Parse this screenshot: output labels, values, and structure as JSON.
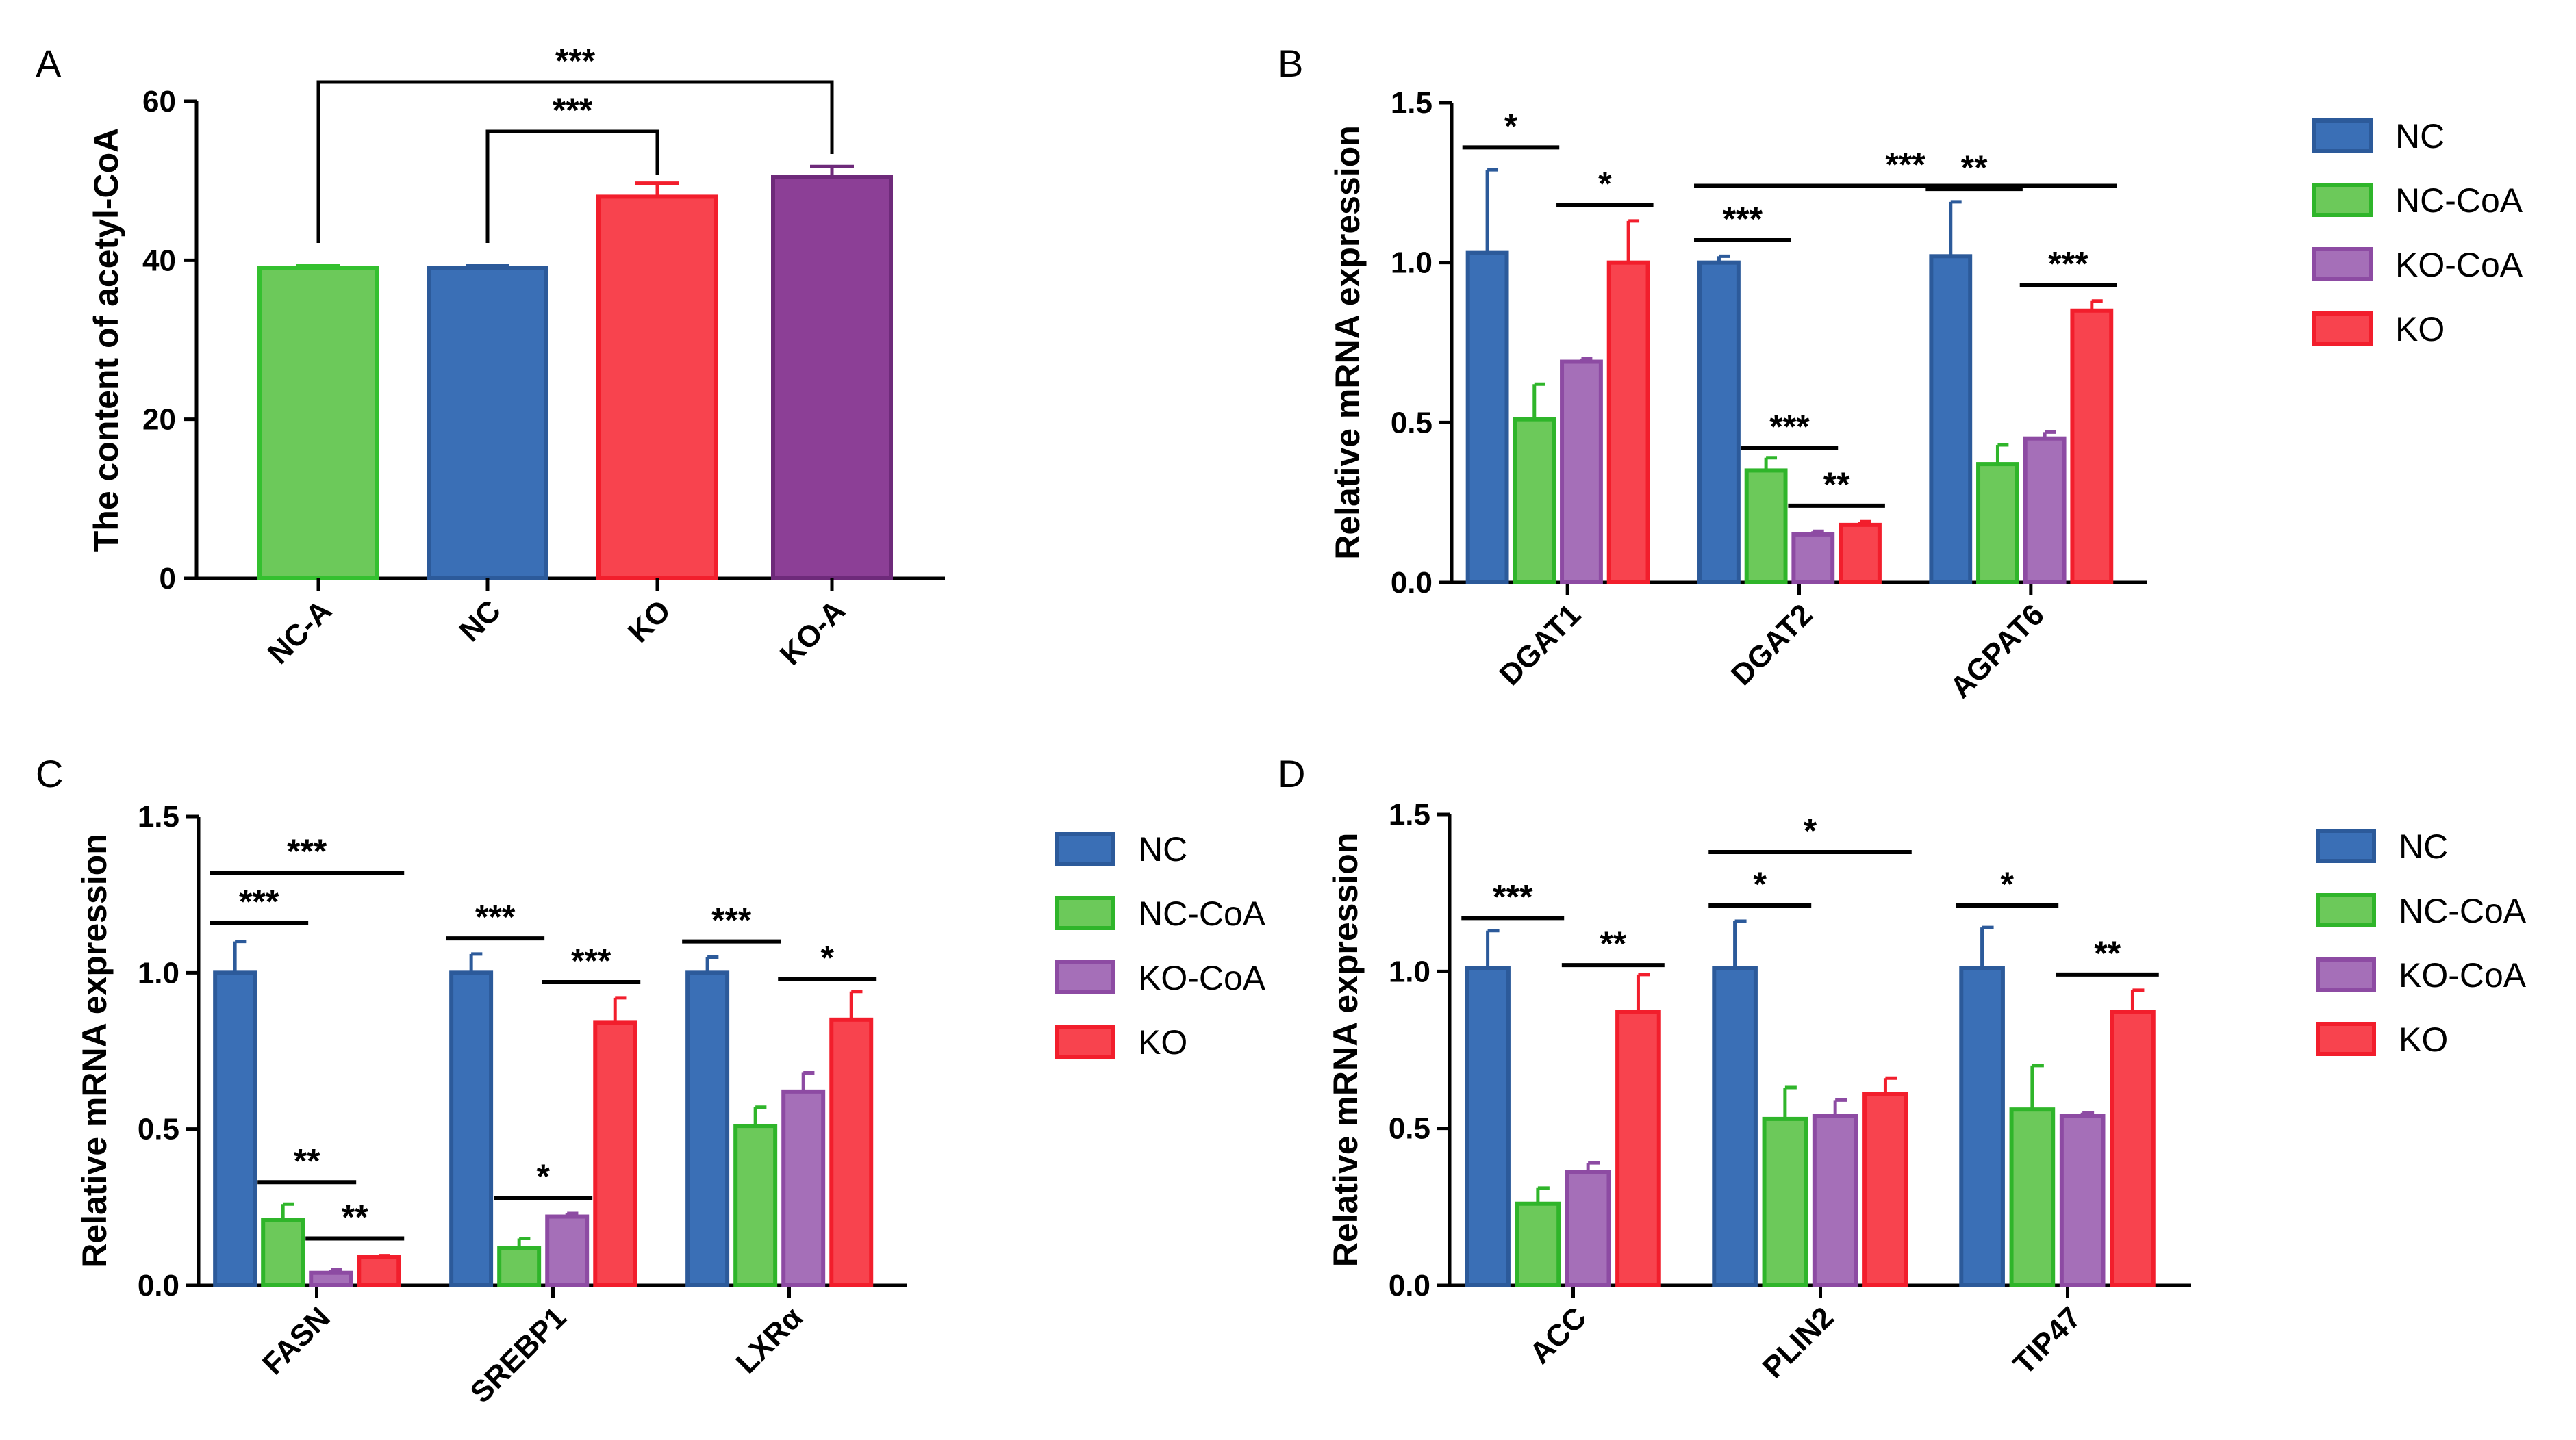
{
  "figure": {
    "series_colors": {
      "NC": "#3a6fb6",
      "NC-CoA": "#6cc95a",
      "KO-CoA": "#a56fb8",
      "KO": "#f8434e",
      "NC-A": "#6cc95a",
      "KO-A": "#8c3f96"
    },
    "series_strokes": {
      "NC": "#2c5a9a",
      "NC-CoA": "#2fb52a",
      "KO-CoA": "#8d4ba3",
      "KO": "#f21e2c",
      "NC-A": "#34c02f",
      "KO-A": "#6e2a7a"
    }
  },
  "chart_data": [
    {
      "panel": "A",
      "type": "bar",
      "title": "",
      "ylabel": "The content of acetyl-CoA",
      "xlabel": "",
      "ylim": [
        0,
        60
      ],
      "yticks": [
        0,
        20,
        40,
        60
      ],
      "categories": [
        "NC-A",
        "NC",
        "KO",
        "KO-A"
      ],
      "values": [
        39,
        39,
        48,
        50.5
      ],
      "errors": [
        0.3,
        0.3,
        1.7,
        1.3
      ],
      "significance": [
        {
          "groups": [
            "NC",
            "KO"
          ],
          "label": "***"
        },
        {
          "groups": [
            "NC-A",
            "KO-A"
          ],
          "label": "***"
        }
      ]
    },
    {
      "panel": "B",
      "type": "bar",
      "ylabel": "Relative mRNA expression",
      "ylim": [
        0,
        1.5
      ],
      "yticks": [
        "0.0",
        "0.5",
        "1.0",
        "1.5"
      ],
      "categories": [
        "DGAT1",
        "DGAT2",
        "AGPAT6"
      ],
      "series": [
        {
          "name": "NC",
          "values": [
            1.03,
            1.0,
            1.02
          ],
          "errors": [
            0.26,
            0.02,
            0.17
          ]
        },
        {
          "name": "NC-CoA",
          "values": [
            0.51,
            0.35,
            0.37
          ],
          "errors": [
            0.11,
            0.04,
            0.06
          ]
        },
        {
          "name": "KO-CoA",
          "values": [
            0.69,
            0.15,
            0.45
          ],
          "errors": [
            0.01,
            0.01,
            0.02
          ]
        },
        {
          "name": "KO",
          "values": [
            1.0,
            0.18,
            0.85
          ],
          "errors": [
            0.13,
            0.01,
            0.03
          ]
        }
      ],
      "legend": [
        "NC",
        "NC-CoA",
        "KO-CoA",
        "KO"
      ],
      "significance": [
        {
          "label": "*",
          "y": 1.36,
          "cat": 0,
          "from": 0,
          "to": 1
        },
        {
          "label": "*",
          "y": 1.18,
          "cat": 0,
          "from": 2,
          "to": 3
        },
        {
          "label": "***",
          "y": 1.24,
          "span": [
            1,
            0,
            2,
            3
          ]
        },
        {
          "label": "***",
          "y": 1.07,
          "cat": 1,
          "from": 0,
          "to": 1
        },
        {
          "label": "***",
          "y": 0.42,
          "cat": 1,
          "from": 1,
          "to": 2
        },
        {
          "label": "**",
          "y": 0.24,
          "cat": 1,
          "from": 2,
          "to": 3
        },
        {
          "label": "**",
          "y": 1.23,
          "cat": 2,
          "from": 0,
          "to": 1
        },
        {
          "label": "***",
          "y": 0.93,
          "cat": 2,
          "from": 2,
          "to": 3
        }
      ]
    },
    {
      "panel": "C",
      "type": "bar",
      "ylabel": "Relative mRNA expression",
      "ylim": [
        0,
        1.5
      ],
      "yticks": [
        "0.0",
        "0.5",
        "1.0",
        "1.5"
      ],
      "categories": [
        "FASN",
        "SREBP1",
        "LXRα"
      ],
      "series": [
        {
          "name": "NC",
          "values": [
            1.0,
            1.0,
            1.0
          ],
          "errors": [
            0.1,
            0.06,
            0.05
          ]
        },
        {
          "name": "NC-CoA",
          "values": [
            0.21,
            0.12,
            0.51
          ],
          "errors": [
            0.05,
            0.03,
            0.06
          ]
        },
        {
          "name": "KO-CoA",
          "values": [
            0.04,
            0.22,
            0.62
          ],
          "errors": [
            0.01,
            0.01,
            0.06
          ]
        },
        {
          "name": "KO",
          "values": [
            0.09,
            0.84,
            0.85
          ],
          "errors": [
            0.005,
            0.08,
            0.09
          ]
        }
      ],
      "legend": [
        "NC",
        "NC-CoA",
        "KO-CoA",
        "KO"
      ],
      "significance": [
        {
          "label": "***",
          "y": 1.32,
          "span": [
            0,
            0,
            0,
            3
          ]
        },
        {
          "label": "***",
          "y": 1.16,
          "cat": 0,
          "from": 0,
          "to": 1
        },
        {
          "label": "**",
          "y": 0.33,
          "cat": 0,
          "from": 1,
          "to": 2
        },
        {
          "label": "**",
          "y": 0.15,
          "cat": 0,
          "from": 2,
          "to": 3
        },
        {
          "label": "***",
          "y": 1.11,
          "cat": 1,
          "from": 0,
          "to": 1
        },
        {
          "label": "*",
          "y": 0.28,
          "cat": 1,
          "from": 1,
          "to": 2
        },
        {
          "label": "***",
          "y": 0.97,
          "cat": 1,
          "from": 2,
          "to": 3
        },
        {
          "label": "***",
          "y": 1.1,
          "cat": 2,
          "from": 0,
          "to": 1
        },
        {
          "label": "*",
          "y": 0.98,
          "cat": 2,
          "from": 2,
          "to": 3
        }
      ]
    },
    {
      "panel": "D",
      "type": "bar",
      "ylabel": "Relative mRNA expression",
      "ylim": [
        0,
        1.5
      ],
      "yticks": [
        "0.0",
        "0.5",
        "1.0",
        "1.5"
      ],
      "categories": [
        "ACC",
        "PLIN2",
        "TIP47"
      ],
      "series": [
        {
          "name": "NC",
          "values": [
            1.01,
            1.01,
            1.01
          ],
          "errors": [
            0.12,
            0.15,
            0.13
          ]
        },
        {
          "name": "NC-CoA",
          "values": [
            0.26,
            0.53,
            0.56
          ],
          "errors": [
            0.05,
            0.1,
            0.14
          ]
        },
        {
          "name": "KO-CoA",
          "values": [
            0.36,
            0.54,
            0.54
          ],
          "errors": [
            0.03,
            0.05,
            0.01
          ]
        },
        {
          "name": "KO",
          "values": [
            0.87,
            0.61,
            0.87
          ],
          "errors": [
            0.12,
            0.05,
            0.07
          ]
        }
      ],
      "legend": [
        "NC",
        "NC-CoA",
        "KO-CoA",
        "KO"
      ],
      "significance": [
        {
          "label": "***",
          "y": 1.17,
          "cat": 0,
          "from": 0,
          "to": 1
        },
        {
          "label": "**",
          "y": 1.02,
          "cat": 0,
          "from": 2,
          "to": 3
        },
        {
          "label": "*",
          "y": 1.38,
          "span": [
            1,
            0,
            1,
            3
          ]
        },
        {
          "label": "*",
          "y": 1.21,
          "cat": 1,
          "from": 0,
          "to": 1
        },
        {
          "label": "*",
          "y": 1.21,
          "cat": 2,
          "from": 0,
          "to": 1
        },
        {
          "label": "**",
          "y": 0.99,
          "cat": 2,
          "from": 2,
          "to": 3
        }
      ]
    }
  ]
}
